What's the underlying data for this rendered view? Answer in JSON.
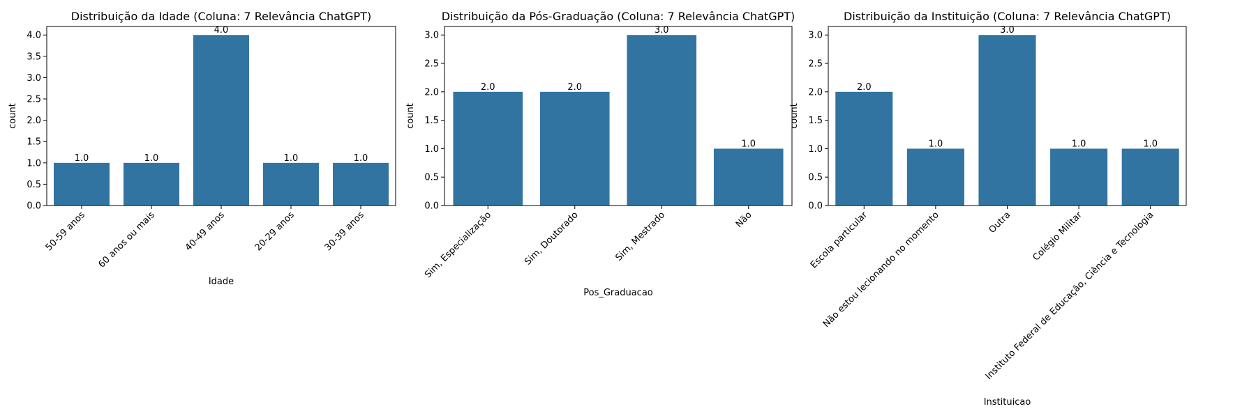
{
  "chart_data": [
    {
      "type": "bar",
      "title": "Distribuição da Idade (Coluna: 7 Relevância ChatGPT)",
      "xlabel": "Idade",
      "ylabel": "count",
      "categories": [
        "50-59 anos",
        "60 anos ou mais",
        "40-49 anos",
        "20-29 anos",
        "30-39 anos"
      ],
      "values": [
        1.0,
        1.0,
        4.0,
        1.0,
        1.0
      ],
      "value_labels": [
        "1.0",
        "1.0",
        "4.0",
        "1.0",
        "1.0"
      ],
      "ylim": [
        0,
        4.2
      ],
      "yticks": [
        "0.0",
        "0.5",
        "1.0",
        "1.5",
        "2.0",
        "2.5",
        "3.0",
        "3.5",
        "4.0"
      ],
      "color": "#3274a1",
      "grid": false
    },
    {
      "type": "bar",
      "title": "Distribuição da Pós-Graduação (Coluna: 7 Relevância ChatGPT)",
      "xlabel": "Pos_Graduacao",
      "ylabel": "count",
      "categories": [
        "Sim, Especialização",
        "Sim, Doutorado",
        "Sim, Mestrado",
        "Não"
      ],
      "values": [
        2.0,
        2.0,
        3.0,
        1.0
      ],
      "value_labels": [
        "2.0",
        "2.0",
        "3.0",
        "1.0"
      ],
      "ylim": [
        0,
        3.15
      ],
      "yticks": [
        "0.0",
        "0.5",
        "1.0",
        "1.5",
        "2.0",
        "2.5",
        "3.0"
      ],
      "color": "#3274a1",
      "grid": false
    },
    {
      "type": "bar",
      "title": "Distribuição da Instituição (Coluna: 7 Relevância ChatGPT)",
      "xlabel": "Instituicao",
      "ylabel": "count",
      "categories": [
        "Escola particular",
        "Não estou lecionando no momento",
        "Outra",
        "Colégio Militar",
        "Instituto Federal de Educação, Ciência e Tecnologia"
      ],
      "values": [
        2.0,
        1.0,
        3.0,
        1.0,
        1.0
      ],
      "value_labels": [
        "2.0",
        "1.0",
        "3.0",
        "1.0",
        "1.0"
      ],
      "ylim": [
        0,
        3.15
      ],
      "yticks": [
        "0.0",
        "0.5",
        "1.0",
        "1.5",
        "2.0",
        "2.5",
        "3.0"
      ],
      "color": "#3274a1",
      "grid": false
    }
  ]
}
